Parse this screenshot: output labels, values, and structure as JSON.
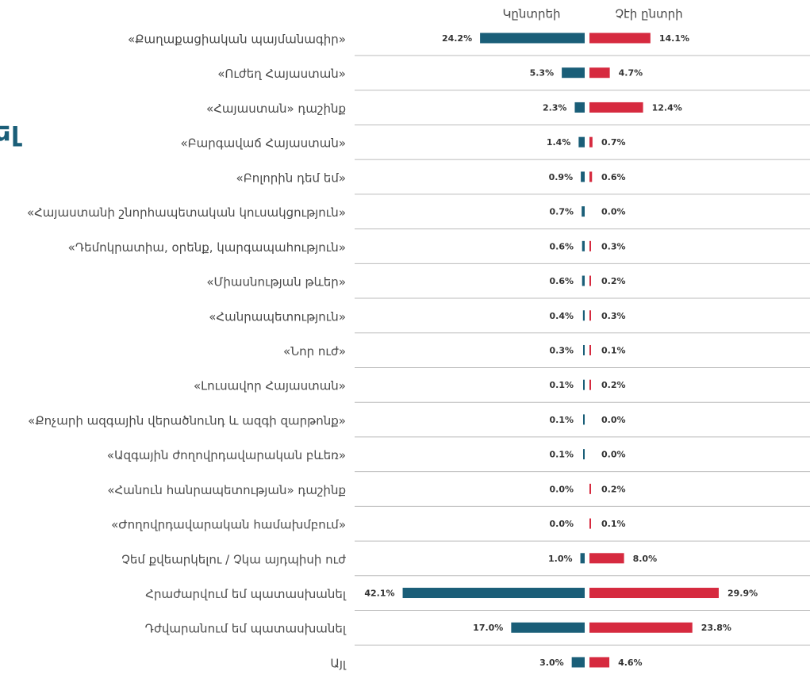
{
  "chart_data": {
    "type": "butterfly-bar",
    "title": "ել",
    "categories": [
      "«Քաղաքացիական պայմանագիր»",
      "«Ուժեղ Հայաստան»",
      "«Հայաստան» դաշինք",
      "«Բարգավաճ Հայաստան»",
      "«Բոլորին դեմ եմ»",
      "«Հայաստանի շնորհապետական կուսակցություն»",
      "«Դեմոկրատիա, օրենք, կարգապահություն»",
      "«Միասնության թևեր»",
      "«Հանրապետություն»",
      "«Նոր ուժ»",
      "«Լուսավոր Հայաստան»",
      "«Քոչարի ազգային վերածնունդ և ազգի զարթոնք»",
      "«Ազգային ժողովրդավարական բևեռ»",
      "«Հանուն հանրապետության»  դաշինք",
      "«Ժողովրդավարական համախմբում»",
      "Չեմ քվեարկելու / Չկա այդպիսի ուժ",
      "Հրաժարվում եմ պատասխանել",
      "Դժվարանում եմ պատասխանել",
      "Այլ"
    ],
    "series": [
      {
        "name": "Կընտրեի",
        "color": "#1a5e78",
        "values": [
          24.2,
          5.3,
          2.3,
          1.4,
          0.9,
          0.7,
          0.6,
          0.6,
          0.4,
          0.3,
          0.1,
          0.1,
          0.1,
          0.0,
          0.0,
          1.0,
          42.1,
          17.0,
          3.0
        ],
        "value_labels": [
          "24.2%",
          "5.3%",
          "2.3%",
          "1.4%",
          "0.9%",
          "0.7%",
          "0.6%",
          "0.6%",
          "0.4%",
          "0.3%",
          "0.1%",
          "0.1%",
          "0.1%",
          "0.0%",
          "0.0%",
          "1.0%",
          "42.1%",
          "17.0%",
          "3.0%"
        ]
      },
      {
        "name": "Չէի ընտրի",
        "color": "#d62a3f",
        "values": [
          14.1,
          4.7,
          12.4,
          0.7,
          0.6,
          0.0,
          0.3,
          0.2,
          0.3,
          0.1,
          0.2,
          0.0,
          0.0,
          0.2,
          0.1,
          8.0,
          29.9,
          23.8,
          4.6
        ],
        "value_labels": [
          "14.1%",
          "4.7%",
          "12.4%",
          "0.7%",
          "0.6%",
          "0.0%",
          "0.3%",
          "0.2%",
          "0.3%",
          "0.1%",
          "0.2%",
          "0.0%",
          "0.0%",
          "0.2%",
          "0.1%",
          "8.0%",
          "29.9%",
          "23.8%",
          "4.6%"
        ]
      }
    ]
  }
}
